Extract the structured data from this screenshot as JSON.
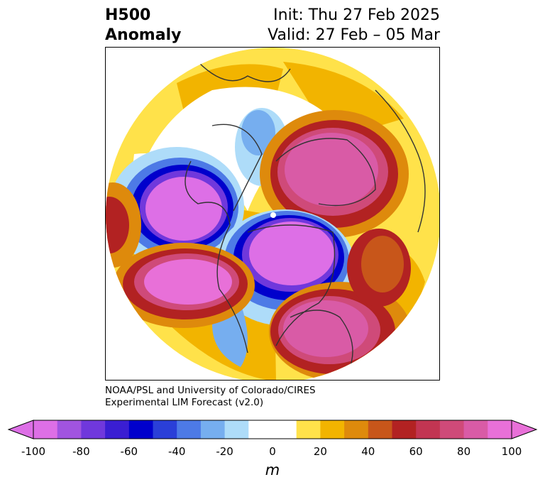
{
  "title": {
    "line1": "H500",
    "line2": "Anomaly",
    "init": "Init: Thu 27 Feb 2025",
    "valid": "Valid: 27 Feb – 05 Mar"
  },
  "credit": {
    "line1": "NOAA/PSL and University of Colorado/CIRES",
    "line2": "Experimental LIM Forecast (v2.0)"
  },
  "colorbar": {
    "unit_label": "m",
    "ticks": [
      "-100",
      "-80",
      "-60",
      "-40",
      "-20",
      "0",
      "20",
      "40",
      "60",
      "80",
      "100"
    ],
    "colors": [
      "#dd6fe6",
      "#a154e0",
      "#7038dc",
      "#3a1ed2",
      "#0000cc",
      "#2a3fd8",
      "#4d7ae6",
      "#76aeef",
      "#aedcf9",
      "#ffffff",
      "#ffffff",
      "#ffe24a",
      "#f2b400",
      "#de8a0c",
      "#c8561a",
      "#b22222",
      "#c23552",
      "#cf4a79",
      "#d95ba6",
      "#e870d8"
    ],
    "extend": "both"
  }
}
